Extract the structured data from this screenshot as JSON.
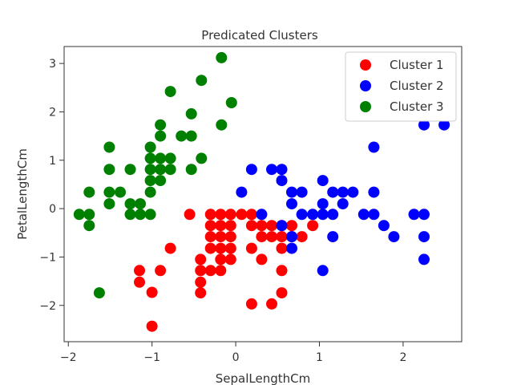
{
  "chart_data": {
    "type": "scatter",
    "title": "Predicated Clusters",
    "xlabel": "SepalLengthCm",
    "ylabel": "PetalLengthCm",
    "xlim": [
      -2.05,
      2.7
    ],
    "ylim": [
      -2.75,
      3.35
    ],
    "xticks": [
      -2,
      -1,
      0,
      1,
      2
    ],
    "yticks": [
      -2,
      -1,
      0,
      1,
      2,
      3
    ],
    "grid": false,
    "legend_position": "top-right",
    "series": [
      {
        "name": "Cluster 1",
        "color": "#ff0000",
        "points": [
          [
            -1.0,
            -2.43
          ],
          [
            -1.0,
            -1.73
          ],
          [
            -1.15,
            -1.52
          ],
          [
            -1.15,
            -1.28
          ],
          [
            -0.9,
            -1.28
          ],
          [
            -0.78,
            -0.82
          ],
          [
            -0.55,
            -0.12
          ],
          [
            -0.42,
            -1.74
          ],
          [
            -0.42,
            -1.52
          ],
          [
            -0.42,
            -1.28
          ],
          [
            -0.42,
            -1.05
          ],
          [
            -0.3,
            -1.28
          ],
          [
            -0.3,
            -0.82
          ],
          [
            -0.3,
            -0.58
          ],
          [
            -0.3,
            -0.35
          ],
          [
            -0.3,
            -0.12
          ],
          [
            -0.18,
            -1.28
          ],
          [
            -0.18,
            -1.05
          ],
          [
            -0.18,
            -0.82
          ],
          [
            -0.18,
            -0.58
          ],
          [
            -0.18,
            -0.35
          ],
          [
            -0.18,
            -0.12
          ],
          [
            -0.06,
            -1.05
          ],
          [
            -0.06,
            -0.82
          ],
          [
            -0.06,
            -0.58
          ],
          [
            -0.06,
            -0.35
          ],
          [
            -0.06,
            -0.12
          ],
          [
            0.07,
            -0.12
          ],
          [
            0.19,
            -1.97
          ],
          [
            0.19,
            -0.82
          ],
          [
            0.19,
            -0.35
          ],
          [
            0.19,
            -0.12
          ],
          [
            0.31,
            -1.05
          ],
          [
            0.31,
            -0.58
          ],
          [
            0.31,
            -0.35
          ],
          [
            0.43,
            -1.97
          ],
          [
            0.43,
            -0.58
          ],
          [
            0.43,
            -0.35
          ],
          [
            0.55,
            -1.74
          ],
          [
            0.55,
            -1.28
          ],
          [
            0.55,
            -0.82
          ],
          [
            0.55,
            -0.58
          ],
          [
            0.55,
            -0.35
          ],
          [
            0.67,
            -0.58
          ],
          [
            0.67,
            -0.35
          ],
          [
            0.79,
            -0.58
          ],
          [
            0.92,
            -0.35
          ]
        ]
      },
      {
        "name": "Cluster 2",
        "color": "#0000ff",
        "points": [
          [
            0.07,
            0.34
          ],
          [
            0.19,
            0.81
          ],
          [
            0.31,
            -0.12
          ],
          [
            0.43,
            0.81
          ],
          [
            0.55,
            0.81
          ],
          [
            0.55,
            0.58
          ],
          [
            0.55,
            -0.35
          ],
          [
            0.67,
            0.34
          ],
          [
            0.67,
            0.1
          ],
          [
            0.67,
            -0.58
          ],
          [
            0.67,
            -0.82
          ],
          [
            0.79,
            0.34
          ],
          [
            0.79,
            -0.12
          ],
          [
            0.92,
            -0.12
          ],
          [
            1.04,
            0.58
          ],
          [
            1.04,
            0.1
          ],
          [
            1.04,
            -0.12
          ],
          [
            1.04,
            -1.28
          ],
          [
            1.16,
            0.34
          ],
          [
            1.16,
            -0.12
          ],
          [
            1.16,
            -0.58
          ],
          [
            1.28,
            0.34
          ],
          [
            1.28,
            0.1
          ],
          [
            1.4,
            0.34
          ],
          [
            1.53,
            -0.12
          ],
          [
            1.65,
            1.27
          ],
          [
            1.65,
            0.34
          ],
          [
            1.65,
            -0.12
          ],
          [
            1.77,
            -0.35
          ],
          [
            1.89,
            -0.58
          ],
          [
            2.13,
            -0.12
          ],
          [
            2.25,
            1.73
          ],
          [
            2.25,
            -0.12
          ],
          [
            2.25,
            -0.58
          ],
          [
            2.25,
            -1.05
          ],
          [
            2.49,
            1.73
          ]
        ]
      },
      {
        "name": "Cluster 3",
        "color": "#008000",
        "points": [
          [
            -1.87,
            -0.12
          ],
          [
            -1.75,
            0.34
          ],
          [
            -1.75,
            -0.12
          ],
          [
            -1.75,
            -0.35
          ],
          [
            -1.63,
            -1.74
          ],
          [
            -1.51,
            1.27
          ],
          [
            -1.51,
            0.81
          ],
          [
            -1.51,
            0.34
          ],
          [
            -1.51,
            0.1
          ],
          [
            -1.38,
            0.34
          ],
          [
            -1.26,
            0.81
          ],
          [
            -1.26,
            0.1
          ],
          [
            -1.26,
            -0.12
          ],
          [
            -1.14,
            0.1
          ],
          [
            -1.14,
            -0.12
          ],
          [
            -1.02,
            1.27
          ],
          [
            -1.02,
            1.04
          ],
          [
            -1.02,
            0.81
          ],
          [
            -1.02,
            0.58
          ],
          [
            -1.02,
            0.34
          ],
          [
            -1.02,
            -0.12
          ],
          [
            -0.9,
            1.73
          ],
          [
            -0.9,
            1.5
          ],
          [
            -0.9,
            1.04
          ],
          [
            -0.9,
            0.81
          ],
          [
            -0.9,
            0.58
          ],
          [
            -0.78,
            2.42
          ],
          [
            -0.78,
            1.04
          ],
          [
            -0.78,
            0.81
          ],
          [
            -0.65,
            1.5
          ],
          [
            -0.53,
            1.96
          ],
          [
            -0.53,
            1.5
          ],
          [
            -0.53,
            0.81
          ],
          [
            -0.41,
            2.65
          ],
          [
            -0.41,
            1.04
          ],
          [
            -0.17,
            3.12
          ],
          [
            -0.17,
            1.73
          ],
          [
            -0.05,
            2.19
          ]
        ]
      }
    ]
  }
}
